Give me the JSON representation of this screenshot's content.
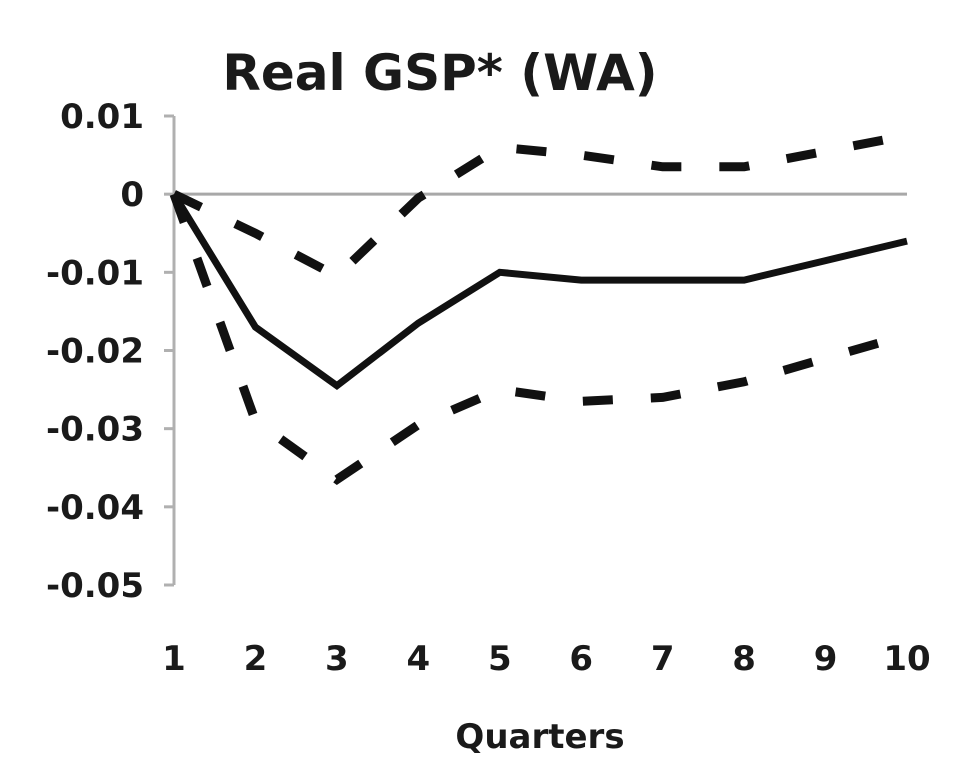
{
  "chart_data": {
    "type": "line",
    "title": "Real GSP* (WA)",
    "xlabel": "Quarters",
    "ylabel": "",
    "x": [
      1,
      2,
      3,
      4,
      5,
      6,
      7,
      8,
      9,
      10
    ],
    "x_tick_labels": [
      "1",
      "2",
      "3",
      "4",
      "5",
      "6",
      "7",
      "8",
      "9",
      "10"
    ],
    "y_tick_values": [
      0.01,
      0,
      -0.01,
      -0.02,
      -0.03,
      -0.04,
      -0.05
    ],
    "y_tick_labels": [
      "0.01",
      "0",
      "-0.01",
      "-0.02",
      "-0.03",
      "-0.04",
      "-0.05"
    ],
    "ylim": [
      -0.05,
      0.01
    ],
    "xlim": [
      1,
      10
    ],
    "grid": false,
    "legend": "none",
    "series": [
      {
        "style": "solid",
        "color": "#111111",
        "values": [
          0,
          -0.017,
          -0.0245,
          -0.0165,
          -0.01,
          -0.011,
          -0.011,
          -0.011,
          -0.0085,
          -0.006
        ]
      },
      {
        "style": "dashed",
        "color": "#111111",
        "values": [
          0,
          -0.005,
          -0.0105,
          -0.0005,
          0.006,
          0.005,
          0.0035,
          0.0035,
          0.0055,
          0.0075
        ]
      },
      {
        "style": "dashed",
        "color": "#111111",
        "values": [
          0,
          -0.029,
          -0.0365,
          -0.0295,
          -0.025,
          -0.0265,
          -0.026,
          -0.024,
          -0.021,
          -0.018
        ]
      }
    ]
  }
}
